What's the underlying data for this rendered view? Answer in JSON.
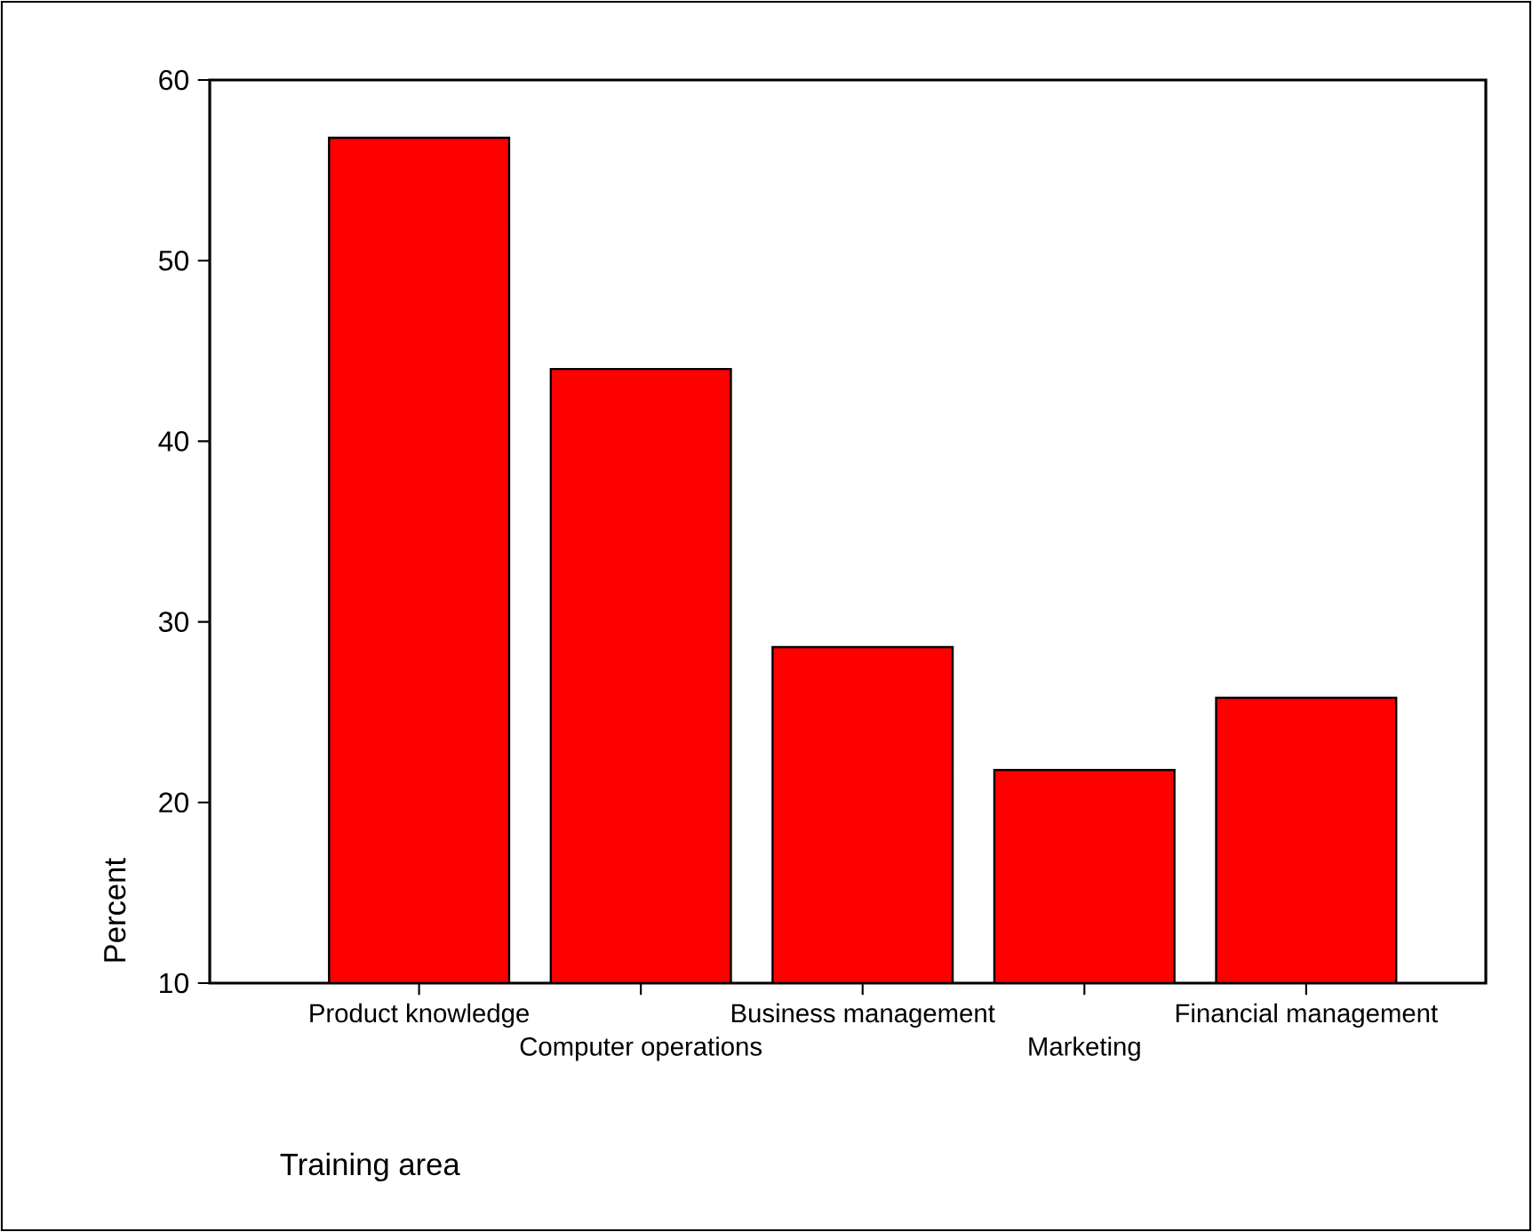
{
  "chart_data": {
    "type": "bar",
    "xlabel": "Training area",
    "ylabel": "Percent",
    "categories": [
      "Product knowledge",
      "Computer operations",
      "Business management",
      "Marketing",
      "Financial management"
    ],
    "values": [
      56.8,
      44.0,
      28.6,
      21.8,
      25.8
    ],
    "color": "#ff0000",
    "ylim": [
      10,
      60
    ],
    "yticks": [
      10,
      20,
      30,
      40,
      50,
      60
    ],
    "grid": false
  }
}
